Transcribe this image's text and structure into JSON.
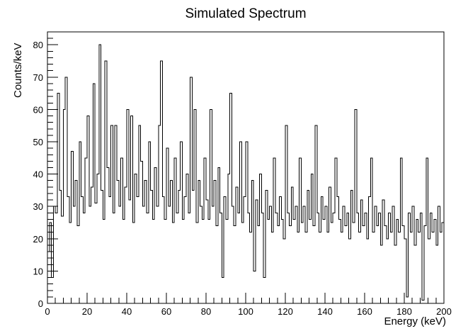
{
  "page": {
    "background": "#ffffff",
    "foreground": "#000000"
  },
  "chart_data": {
    "type": "bar",
    "subtype": "histogram-step-outline",
    "title": "Simulated Spectrum",
    "xlabel": "Energy (keV)",
    "ylabel": "Counts/keV",
    "xlim": [
      0,
      200
    ],
    "ylim": [
      0,
      84
    ],
    "grid": false,
    "legend": false,
    "line_color": "#000000",
    "background_color": "#ffffff",
    "x_major_ticks": [
      0,
      20,
      40,
      60,
      80,
      100,
      120,
      140,
      160,
      180,
      200
    ],
    "x_minor_step": 4,
    "y_major_ticks": [
      0,
      10,
      20,
      30,
      40,
      50,
      60,
      70,
      80
    ],
    "y_minor_step": 2,
    "bin_start_keV": 0,
    "bin_width_keV": 1,
    "values": [
      16,
      25,
      8,
      30,
      28,
      65,
      35,
      27,
      60,
      70,
      33,
      25,
      47,
      30,
      38,
      24,
      50,
      33,
      28,
      45,
      58,
      30,
      36,
      68,
      31,
      40,
      80,
      35,
      26,
      75,
      42,
      33,
      55,
      28,
      55,
      38,
      30,
      45,
      26,
      36,
      60,
      32,
      58,
      25,
      40,
      33,
      55,
      44,
      30,
      38,
      28,
      50,
      35,
      26,
      42,
      30,
      55,
      75,
      33,
      26,
      48,
      30,
      38,
      25,
      45,
      28,
      35,
      50,
      26,
      33,
      40,
      28,
      70,
      35,
      60,
      25,
      38,
      30,
      26,
      45,
      32,
      26,
      60,
      30,
      38,
      24,
      42,
      28,
      8,
      33,
      26,
      40,
      65,
      30,
      24,
      36,
      28,
      50,
      25,
      33,
      50,
      28,
      22,
      38,
      10,
      32,
      24,
      40,
      28,
      8,
      35,
      26,
      30,
      22,
      45,
      28,
      24,
      33,
      26,
      20,
      55,
      28,
      24,
      36,
      26,
      30,
      22,
      45,
      25,
      30,
      22,
      35,
      26,
      40,
      24,
      55,
      28,
      22,
      33,
      26,
      30,
      22,
      36,
      25,
      28,
      45,
      33,
      26,
      22,
      30,
      24,
      28,
      20,
      35,
      25,
      60,
      28,
      22,
      32,
      24,
      28,
      20,
      33,
      45,
      22,
      30,
      24,
      28,
      18,
      32,
      24,
      20,
      28,
      22,
      30,
      18,
      26,
      22,
      45,
      24,
      20,
      2,
      28,
      22,
      30,
      18,
      26,
      22,
      28,
      1,
      24,
      45,
      20,
      28,
      22,
      26,
      18,
      30,
      22,
      25
    ]
  }
}
